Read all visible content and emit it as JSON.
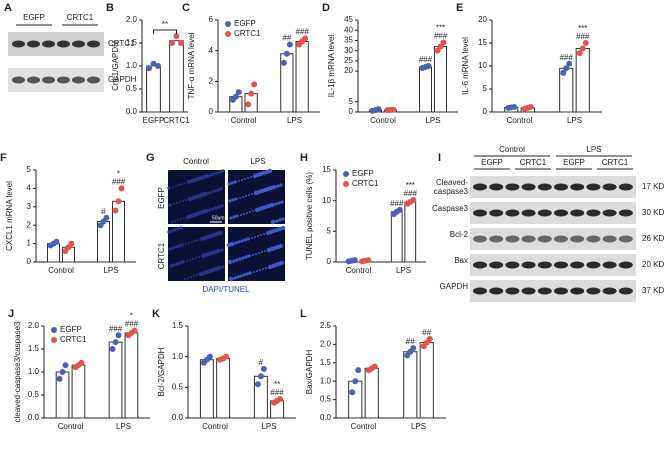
{
  "chart_data": [
    {
      "panel": "B",
      "type": "bar",
      "ylabel": "Crtc1/GAPDH",
      "categories": [
        "EGFP",
        "CRTC1"
      ],
      "values": [
        1.0,
        1.55
      ],
      "points": [
        [
          0.95,
          1.05,
          1.0
        ],
        [
          1.5,
          1.65,
          1.5
        ]
      ],
      "point_colors": [
        "#4a62b0",
        "#e2544e"
      ],
      "significance": "**",
      "ylim": [
        0,
        2
      ],
      "yticks": [
        {
          "value": 0,
          "label": "0.0"
        },
        {
          "value": 0.5,
          "label": "0.5"
        },
        {
          "value": 1,
          "label": "1.0"
        },
        {
          "value": 1.5,
          "label": "1.5"
        },
        {
          "value": 2,
          "label": "2.0"
        }
      ]
    },
    {
      "panel": "C",
      "type": "bar",
      "ylabel": "TNF-α mRNA level",
      "categories": [
        "Control",
        "LPS"
      ],
      "legend": true,
      "ylim": [
        0,
        6
      ],
      "yticks": [
        0,
        2,
        4,
        6
      ],
      "series": [
        {
          "name": "EGFP",
          "color": "#4a62b0",
          "values": [
            1.0,
            3.8
          ],
          "points": [
            [
              0.8,
              1.0,
              1.3
            ],
            [
              3.2,
              3.8,
              4.4
            ]
          ],
          "significance": [
            [],
            [
              "##"
            ]
          ]
        },
        {
          "name": "CRTC1",
          "color": "#e2544e",
          "values": [
            1.2,
            4.6
          ],
          "points": [
            [
              0.5,
              1.2,
              1.8
            ],
            [
              4.4,
              4.6,
              4.8
            ]
          ],
          "significance": [
            [],
            [
              "###"
            ]
          ]
        }
      ]
    },
    {
      "panel": "D",
      "type": "bar",
      "ylabel": "IL-1β mRNA level",
      "categories": [
        "Control",
        "LPS"
      ],
      "ylim": [
        0,
        45
      ],
      "yticks": [
        0,
        5,
        20,
        25,
        30,
        35,
        40,
        45
      ],
      "series": [
        {
          "name": "EGFP",
          "color": "#4a62b0",
          "values": [
            1.0,
            22
          ],
          "points": [
            [
              0.6,
              1.0,
              1.4
            ],
            [
              21.5,
              22,
              22.5
            ]
          ],
          "significance": [
            [],
            [
              "###"
            ]
          ]
        },
        {
          "name": "CRTC1",
          "color": "#e2544e",
          "values": [
            1.0,
            32
          ],
          "points": [
            [
              0.9,
              1.0,
              1.1
            ],
            [
              30,
              32,
              34
            ]
          ],
          "significance": [
            [],
            [
              "***",
              "###"
            ]
          ]
        }
      ]
    },
    {
      "panel": "E",
      "type": "bar",
      "ylabel": "IL-6 mRNA level",
      "categories": [
        "Control",
        "LPS"
      ],
      "ylim": [
        0,
        20
      ],
      "yticks": [
        0,
        5,
        10,
        15,
        20
      ],
      "series": [
        {
          "name": "EGFP",
          "color": "#4a62b0",
          "values": [
            1.0,
            9.5
          ],
          "points": [
            [
              0.9,
              1.0,
              1.1
            ],
            [
              8.5,
              9.5,
              10.5
            ]
          ],
          "significance": [
            [],
            [
              "###"
            ]
          ]
        },
        {
          "name": "CRTC1",
          "color": "#e2544e",
          "values": [
            0.9,
            13.8
          ],
          "points": [
            [
              0.7,
              0.9,
              1.1
            ],
            [
              12.8,
              13.8,
              15
            ]
          ],
          "significance": [
            [],
            [
              "***",
              "###"
            ]
          ]
        }
      ]
    },
    {
      "panel": "F",
      "type": "bar",
      "ylabel": "CXCL1 mRNA level",
      "categories": [
        "Control",
        "LPS"
      ],
      "ylim": [
        0,
        5
      ],
      "yticks": [
        0,
        1,
        2,
        3,
        4,
        5
      ],
      "series": [
        {
          "name": "EGFP",
          "color": "#4a62b0",
          "values": [
            1.0,
            2.2
          ],
          "points": [
            [
              0.9,
              1.0,
              1.1
            ],
            [
              2.0,
              2.2,
              2.4
            ]
          ],
          "significance": [
            [],
            [
              "#"
            ]
          ]
        },
        {
          "name": "CRTC1",
          "color": "#e2544e",
          "values": [
            0.8,
            3.3
          ],
          "points": [
            [
              0.6,
              0.8,
              1.0
            ],
            [
              2.8,
              3.3,
              4.0
            ]
          ],
          "significance": [
            [],
            [
              "*",
              "###"
            ]
          ]
        }
      ]
    },
    {
      "panel": "H",
      "type": "bar",
      "ylabel": "TUNEL positive cells (%)",
      "categories": [
        "Control",
        "LPS"
      ],
      "legend": true,
      "ylim": [
        0,
        15
      ],
      "yticks": [
        0,
        5,
        10,
        15
      ],
      "series": [
        {
          "name": "EGFP",
          "color": "#4a62b0",
          "values": [
            0.2,
            8.2
          ],
          "points": [
            [
              0.1,
              0.2,
              0.3
            ],
            [
              7.8,
              8.2,
              8.5
            ]
          ],
          "significance": [
            [],
            [
              "###"
            ]
          ]
        },
        {
          "name": "CRTC1",
          "color": "#e2544e",
          "values": [
            0.2,
            9.8
          ],
          "points": [
            [
              0.1,
              0.2,
              0.3
            ],
            [
              9.5,
              9.8,
              10.1
            ]
          ],
          "significance": [
            [],
            [
              "***",
              "###"
            ]
          ]
        }
      ]
    },
    {
      "panel": "J",
      "type": "bar",
      "ylabel": "cleaved-caspase3/caspase3",
      "categories": [
        "Control",
        "LPS"
      ],
      "legend": true,
      "ylim": [
        0,
        2
      ],
      "yticks": [
        {
          "value": 0,
          "label": "0.0"
        },
        {
          "value": 0.5,
          "label": "0.5"
        },
        {
          "value": 1,
          "label": "1.0"
        },
        {
          "value": 1.5,
          "label": "1.5"
        },
        {
          "value": 2,
          "label": "2.0"
        }
      ],
      "series": [
        {
          "name": "EGFP",
          "color": "#4a62b0",
          "values": [
            1.0,
            1.65
          ],
          "points": [
            [
              0.85,
              1.0,
              1.15
            ],
            [
              1.5,
              1.65,
              1.8
            ]
          ],
          "significance": [
            [],
            [
              "###"
            ]
          ]
        },
        {
          "name": "CRTC1",
          "color": "#e2544e",
          "values": [
            1.15,
            1.85
          ],
          "points": [
            [
              1.1,
              1.15,
              1.2
            ],
            [
              1.8,
              1.85,
              1.9
            ]
          ],
          "significance": [
            [],
            [
              "*",
              "###"
            ]
          ]
        }
      ]
    },
    {
      "panel": "K",
      "type": "bar",
      "ylabel": "Bcl-2/GAPDH",
      "categories": [
        "Control",
        "LPS"
      ],
      "ylim": [
        0,
        1.5
      ],
      "yticks": [
        {
          "value": 0,
          "label": "0.0"
        },
        {
          "value": 0.5,
          "label": "0.5"
        },
        {
          "value": 1,
          "label": "1.0"
        },
        {
          "value": 1.5,
          "label": "1.5"
        }
      ],
      "series": [
        {
          "name": "EGFP",
          "color": "#4a62b0",
          "values": [
            0.95,
            0.68
          ],
          "points": [
            [
              0.9,
              0.95,
              1.0
            ],
            [
              0.55,
              0.68,
              0.8
            ]
          ],
          "significance": [
            [],
            [
              "#"
            ]
          ]
        },
        {
          "name": "CRTC1",
          "color": "#e2544e",
          "values": [
            0.97,
            0.28
          ],
          "points": [
            [
              0.95,
              0.97,
              1.0
            ],
            [
              0.25,
              0.28,
              0.31
            ]
          ],
          "significance": [
            [],
            [
              "**",
              "###"
            ]
          ]
        }
      ]
    },
    {
      "panel": "L",
      "type": "bar",
      "ylabel": "Bax/GAPDH",
      "categories": [
        "Control",
        "LPS"
      ],
      "ylim": [
        0,
        2.5
      ],
      "yticks": [
        {
          "value": 0,
          "label": "0.0"
        },
        {
          "value": 0.5,
          "label": "0.5"
        },
        {
          "value": 1,
          "label": "1.0"
        },
        {
          "value": 1.5,
          "label": "1.5"
        },
        {
          "value": 2,
          "label": "2.0"
        },
        {
          "value": 2.5,
          "label": "2.5"
        }
      ],
      "series": [
        {
          "name": "EGFP",
          "color": "#4a62b0",
          "values": [
            1.0,
            1.8
          ],
          "points": [
            [
              0.7,
              1.0,
              1.3
            ],
            [
              1.7,
              1.8,
              1.9
            ]
          ],
          "significance": [
            [],
            [
              "##"
            ]
          ]
        },
        {
          "name": "CRTC1",
          "color": "#e2544e",
          "values": [
            1.35,
            2.05
          ],
          "points": [
            [
              1.3,
              1.35,
              1.4
            ],
            [
              1.95,
              2.05,
              2.15
            ]
          ],
          "significance": [
            [],
            [
              "##"
            ]
          ]
        }
      ]
    }
  ],
  "blot_a": {
    "panel": "A",
    "groups": [
      "EGFP",
      "CRTC1"
    ],
    "bands": [
      "CRTC1",
      "GAPDH"
    ]
  },
  "image_g": {
    "panel": "G",
    "columns": [
      "Control",
      "LPS"
    ],
    "rows": [
      "EGFP",
      "CRTC1"
    ],
    "scale": "50um",
    "caption": "DAPI/TUNEL"
  },
  "blot_i": {
    "panel": "I",
    "conditions": [
      "Control",
      "LPS"
    ],
    "groups": [
      "EGFP",
      "CRTC1",
      "EGFP",
      "CRTC1"
    ],
    "bands": [
      {
        "name": "Cleaved-caspase3",
        "size": "17 KD"
      },
      {
        "name": "Caspase3",
        "size": "30 KD"
      },
      {
        "name": "Bcl-2",
        "size": "26 KD"
      },
      {
        "name": "Bax",
        "size": "20 KD"
      },
      {
        "name": "GAPDH",
        "size": "37 KD"
      }
    ]
  }
}
